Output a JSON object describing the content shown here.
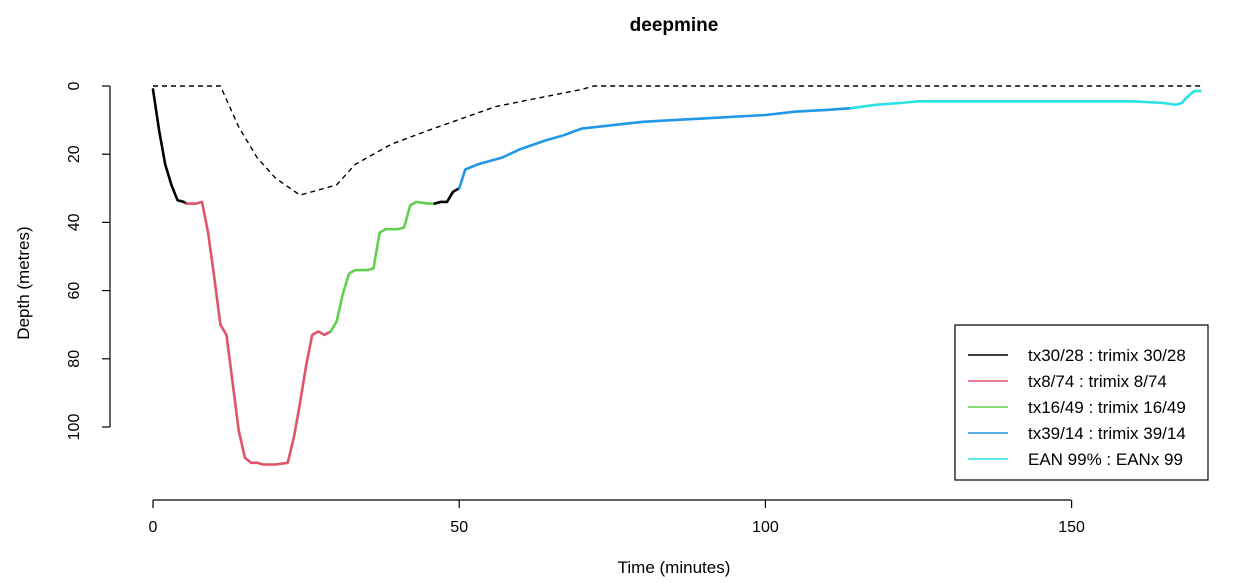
{
  "chart_data": {
    "type": "line",
    "title": "deepmine",
    "xlabel": "Time (minutes)",
    "ylabel": "Depth (metres)",
    "xlim": [
      0,
      172
    ],
    "ylim": [
      115,
      0
    ],
    "y_reversed": true,
    "x_ticks": [
      0,
      50,
      100,
      150
    ],
    "y_ticks": [
      0,
      20,
      40,
      60,
      80,
      100
    ],
    "x_tick_labels": [
      "0",
      "50",
      "100",
      "150"
    ],
    "y_tick_labels": [
      "0",
      "20",
      "40",
      "60",
      "80",
      "100"
    ],
    "grid": false,
    "legend_position": "bottom-right",
    "ceiling": {
      "style": "dashed",
      "color": "#000000",
      "x": [
        0,
        11,
        14,
        17,
        20,
        24,
        30,
        33,
        39,
        45,
        56,
        70,
        72,
        120,
        171
      ],
      "y": [
        0,
        0,
        12,
        21,
        27,
        32,
        29,
        23,
        17,
        13,
        6,
        1,
        0,
        0,
        0
      ]
    },
    "series": [
      {
        "name": "tx30/28 : trimix 30/28",
        "color": "#000000",
        "x": [
          0,
          1,
          2,
          3,
          4,
          5,
          5.5
        ],
        "y": [
          1,
          13,
          23,
          29,
          33.5,
          34,
          34.5
        ]
      },
      {
        "name": "tx8/74 : trimix 8/74",
        "color": "#DF536B",
        "x": [
          5.5,
          7,
          8,
          9,
          10,
          11,
          12,
          13,
          14,
          15,
          16,
          17,
          18,
          20,
          22,
          23,
          24,
          25,
          26,
          27,
          28,
          29
        ],
        "y": [
          34.5,
          34.5,
          34,
          43,
          56,
          70,
          73,
          87,
          101,
          109,
          110.5,
          110.5,
          111,
          111,
          110.5,
          103,
          93,
          82,
          73,
          72,
          73,
          72
        ]
      },
      {
        "name": "tx16/49 : trimix 16/49",
        "color": "#61D04F",
        "x": [
          29,
          30,
          31,
          32,
          33,
          35,
          36,
          37,
          38,
          40,
          41,
          42,
          43,
          45,
          46
        ],
        "y": [
          72,
          69,
          61,
          55,
          54,
          54,
          53.5,
          43,
          42,
          42,
          41.5,
          35,
          34,
          34.5,
          34.5
        ]
      },
      {
        "name": "tx30/28 : trimix 30/28",
        "color": "#000000",
        "x": [
          46,
          47,
          48,
          49,
          50
        ],
        "y": [
          34.5,
          34,
          34,
          31,
          30
        ]
      },
      {
        "name": "tx39/14 : trimix 39/14",
        "color": "#2297E6",
        "x": [
          50,
          51,
          53,
          57,
          60,
          64,
          67,
          70,
          75,
          80,
          85,
          90,
          95,
          100,
          105,
          110,
          114
        ],
        "y": [
          30,
          24.5,
          23,
          21,
          18.5,
          16,
          14.5,
          12.5,
          11.5,
          10.5,
          10,
          9.5,
          9,
          8.5,
          7.5,
          7,
          6.5
        ]
      },
      {
        "name": "EAN 99% : EANx 99",
        "color": "#28E2E5",
        "x": [
          114,
          118,
          122,
          125,
          130,
          140,
          150,
          160,
          165,
          167,
          168,
          169,
          170,
          171
        ],
        "y": [
          6.5,
          5.5,
          5,
          4.5,
          4.5,
          4.5,
          4.5,
          4.5,
          5,
          5.5,
          5,
          3,
          1.5,
          1.5
        ]
      }
    ],
    "legend": [
      {
        "label": "tx30/28 : trimix 30/28",
        "color": "#000000"
      },
      {
        "label": "tx8/74 : trimix 8/74",
        "color": "#DF536B"
      },
      {
        "label": "tx16/49 : trimix 16/49",
        "color": "#61D04F"
      },
      {
        "label": "tx39/14 : trimix 39/14",
        "color": "#2297E6"
      },
      {
        "label": "EAN 99% : EANx 99",
        "color": "#28E2E5"
      }
    ]
  }
}
